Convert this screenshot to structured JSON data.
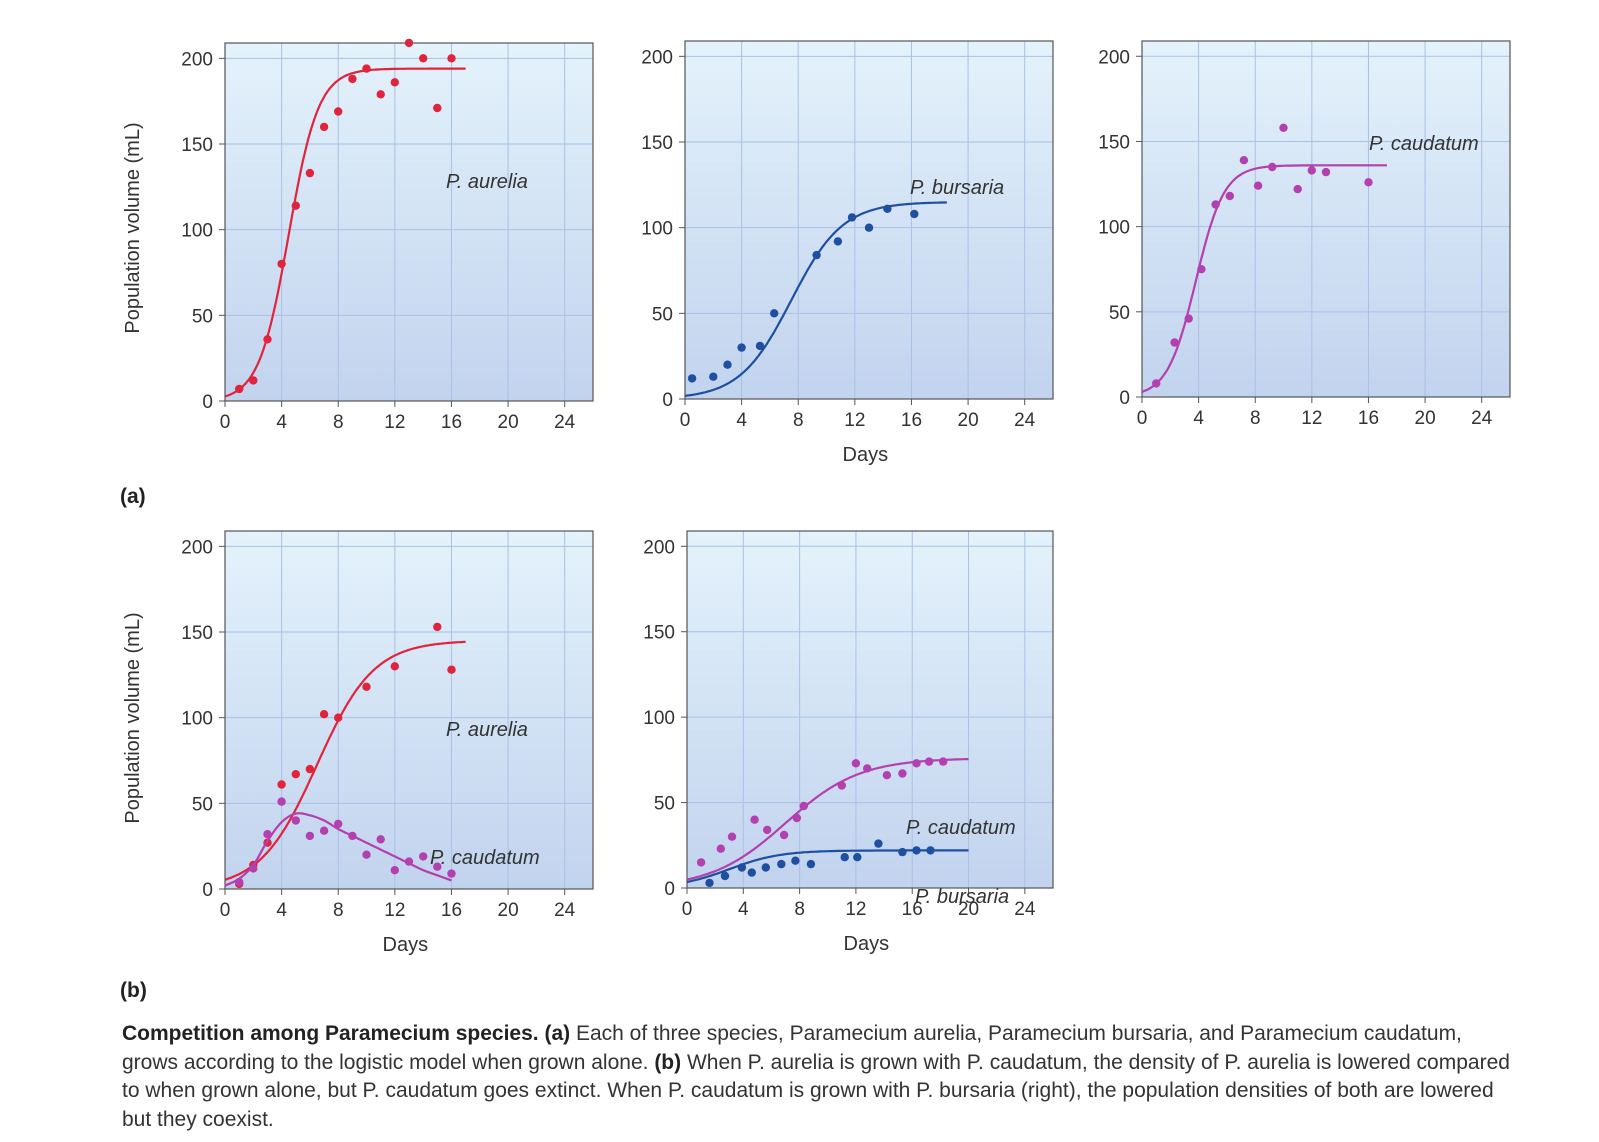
{
  "figure": {
    "panel_a_letter": "(a)",
    "panel_b_letter": "(b)",
    "y_axis_label": "Population volume (mL)",
    "x_axis_label": "Days"
  },
  "colors": {
    "aurelia": "#e0243c",
    "bursaria": "#1f4fa0",
    "caudatum": "#b43fae",
    "plot_bg_top": "#e4f2fb",
    "plot_bg_bottom": "#c2d3ee",
    "grid": "#a9c1e6"
  },
  "caption": {
    "lead": "Competition among Paramecium species.",
    "a_marker": "(a)",
    "a_text": "Each of three species, Paramecium aurelia, Paramecium bursaria, and Paramecium caudatum, grows according to the logistic model when grown alone.",
    "b_marker": "(b)",
    "b_text": "When P. aurelia is grown with P. caudatum, the density of P. aurelia is lowered compared to when grown alone, but P. caudatum goes extinct. When P. caudatum is grown with P. bursaria (right), the population densities of both are lowered but they coexist."
  },
  "chart_data": [
    {
      "type": "scatter",
      "id": "a1",
      "xlim": [
        0,
        26
      ],
      "ylim": [
        0,
        210
      ],
      "xticks": [
        0,
        4,
        8,
        12,
        16,
        20,
        24
      ],
      "yticks": [
        0,
        50,
        100,
        150,
        200
      ],
      "xlabel": "",
      "ylabel": "Population volume (mL)",
      "series": [
        {
          "name": "P. aurelia",
          "color_key": "aurelia",
          "points": [
            [
              1,
              7
            ],
            [
              2,
              12
            ],
            [
              3,
              36
            ],
            [
              4,
              80
            ],
            [
              5,
              114
            ],
            [
              6,
              133
            ],
            [
              7,
              160
            ],
            [
              8,
              169
            ],
            [
              9,
              188
            ],
            [
              10,
              194
            ],
            [
              11,
              179
            ],
            [
              12,
              186
            ],
            [
              13,
              209
            ],
            [
              14,
              200
            ],
            [
              15,
              171
            ],
            [
              16,
              200
            ]
          ],
          "curve": {
            "K": 194,
            "r": 0.95,
            "t0": 4.5,
            "xmin": 0,
            "xmax": 17
          }
        }
      ]
    },
    {
      "type": "scatter",
      "id": "a2",
      "xlim": [
        0,
        26
      ],
      "ylim": [
        0,
        210
      ],
      "xticks": [
        0,
        4,
        8,
        12,
        16,
        20,
        24
      ],
      "yticks": [
        0,
        50,
        100,
        150,
        200
      ],
      "xlabel": "Days",
      "ylabel": "",
      "series": [
        {
          "name": "P. bursaria",
          "color_key": "bursaria",
          "points": [
            [
              0.5,
              12
            ],
            [
              2,
              13
            ],
            [
              3,
              20
            ],
            [
              4,
              30
            ],
            [
              5.3,
              31
            ],
            [
              6.3,
              50
            ],
            [
              9.3,
              84
            ],
            [
              10.8,
              92
            ],
            [
              11.8,
              106
            ],
            [
              13,
              100
            ],
            [
              14.3,
              111
            ],
            [
              16.2,
              108
            ]
          ],
          "curve": {
            "K": 115,
            "r": 0.55,
            "t0": 7.5,
            "xmin": 0,
            "xmax": 18.5
          }
        }
      ]
    },
    {
      "type": "scatter",
      "id": "a3",
      "xlim": [
        0,
        26
      ],
      "ylim": [
        0,
        210
      ],
      "xticks": [
        0,
        4,
        8,
        12,
        16,
        20,
        24
      ],
      "yticks": [
        0,
        50,
        100,
        150,
        200
      ],
      "xlabel": "",
      "ylabel": "",
      "series": [
        {
          "name": "P. caudatum",
          "color_key": "caudatum",
          "points": [
            [
              1,
              8
            ],
            [
              2.3,
              32
            ],
            [
              3.3,
              46
            ],
            [
              4.2,
              75
            ],
            [
              5.2,
              113
            ],
            [
              6.2,
              118
            ],
            [
              7.2,
              139
            ],
            [
              8.2,
              124
            ],
            [
              9.2,
              135
            ],
            [
              10,
              158
            ],
            [
              11,
              122
            ],
            [
              12,
              133
            ],
            [
              13,
              132
            ],
            [
              16,
              126
            ]
          ],
          "curve": {
            "K": 136,
            "r": 1.0,
            "t0": 3.8,
            "xmin": 0,
            "xmax": 17.3
          }
        }
      ]
    },
    {
      "type": "scatter",
      "id": "b1",
      "xlim": [
        0,
        26
      ],
      "ylim": [
        0,
        210
      ],
      "xticks": [
        0,
        4,
        8,
        12,
        16,
        20,
        24
      ],
      "yticks": [
        0,
        50,
        100,
        150,
        200
      ],
      "xlabel": "Days",
      "ylabel": "Population volume (mL)",
      "series": [
        {
          "name": "P. aurelia",
          "color_key": "aurelia",
          "points": [
            [
              1,
              3
            ],
            [
              2,
              14
            ],
            [
              3,
              27
            ],
            [
              4,
              61
            ],
            [
              5,
              67
            ],
            [
              6,
              70
            ],
            [
              7,
              102
            ],
            [
              8,
              100
            ],
            [
              10,
              118
            ],
            [
              12,
              130
            ],
            [
              15,
              153
            ],
            [
              16,
              128
            ]
          ],
          "curve": {
            "K": 145,
            "r": 0.5,
            "t0": 6.5,
            "xmin": 0,
            "xmax": 17
          }
        },
        {
          "name": "P. caudatum",
          "color_key": "caudatum",
          "points": [
            [
              1,
              4
            ],
            [
              2,
              12
            ],
            [
              3,
              32
            ],
            [
              4,
              51
            ],
            [
              5,
              40
            ],
            [
              6,
              31
            ],
            [
              7,
              34
            ],
            [
              8,
              38
            ],
            [
              9,
              31
            ],
            [
              10,
              20
            ],
            [
              11,
              29
            ],
            [
              12,
              11
            ],
            [
              13,
              16
            ],
            [
              14,
              19
            ],
            [
              15,
              13
            ],
            [
              16,
              9
            ]
          ],
          "curve_points": [
            [
              0,
              2
            ],
            [
              1,
              6
            ],
            [
              2,
              14
            ],
            [
              3,
              28
            ],
            [
              4,
              39
            ],
            [
              5,
              44
            ],
            [
              6,
              43
            ],
            [
              7,
              40
            ],
            [
              8,
              35
            ],
            [
              9,
              31
            ],
            [
              10,
              27
            ],
            [
              11,
              23
            ],
            [
              12,
              19
            ],
            [
              13,
              15
            ],
            [
              14,
              11
            ],
            [
              15,
              8
            ],
            [
              16,
              5
            ]
          ]
        }
      ]
    },
    {
      "type": "scatter",
      "id": "b2",
      "xlim": [
        0,
        26
      ],
      "ylim": [
        0,
        210
      ],
      "xticks": [
        0,
        4,
        8,
        12,
        16,
        20,
        24
      ],
      "yticks": [
        0,
        50,
        100,
        150,
        200
      ],
      "xlabel": "Days",
      "ylabel": "",
      "series": [
        {
          "name": "P. caudatum",
          "color_key": "caudatum",
          "points": [
            [
              1,
              15
            ],
            [
              2.4,
              23
            ],
            [
              3.2,
              30
            ],
            [
              4.8,
              40
            ],
            [
              5.7,
              34
            ],
            [
              6.9,
              31
            ],
            [
              7.8,
              41
            ],
            [
              8.3,
              48
            ],
            [
              11,
              60
            ],
            [
              12,
              73
            ],
            [
              12.8,
              70
            ],
            [
              14.2,
              66
            ],
            [
              15.3,
              67
            ],
            [
              16.3,
              73
            ],
            [
              17.2,
              74
            ],
            [
              18.2,
              74
            ]
          ],
          "curve": {
            "K": 76,
            "r": 0.38,
            "t0": 7.0,
            "xmin": 0,
            "xmax": 20
          }
        },
        {
          "name": "P. bursaria",
          "color_key": "bursaria",
          "points": [
            [
              1.6,
              3
            ],
            [
              2.7,
              7
            ],
            [
              3.9,
              12
            ],
            [
              4.6,
              9
            ],
            [
              5.6,
              12
            ],
            [
              6.7,
              14
            ],
            [
              7.7,
              16
            ],
            [
              8.8,
              14
            ],
            [
              11.2,
              18
            ],
            [
              12.1,
              18
            ],
            [
              13.6,
              26
            ],
            [
              15.3,
              21
            ],
            [
              16.3,
              22
            ],
            [
              17.3,
              22
            ]
          ],
          "curve": {
            "K": 22,
            "r": 0.55,
            "t0": 3.0,
            "xmin": 0,
            "xmax": 20
          }
        }
      ]
    }
  ],
  "labels": {
    "a1_series": "P. aurelia",
    "a2_series": "P. bursaria",
    "a3_series": "P. caudatum",
    "b1_series_1": "P. aurelia",
    "b1_series_2": "P. caudatum",
    "b2_series_1": "P. caudatum",
    "b2_series_2": "P. bursaria"
  }
}
